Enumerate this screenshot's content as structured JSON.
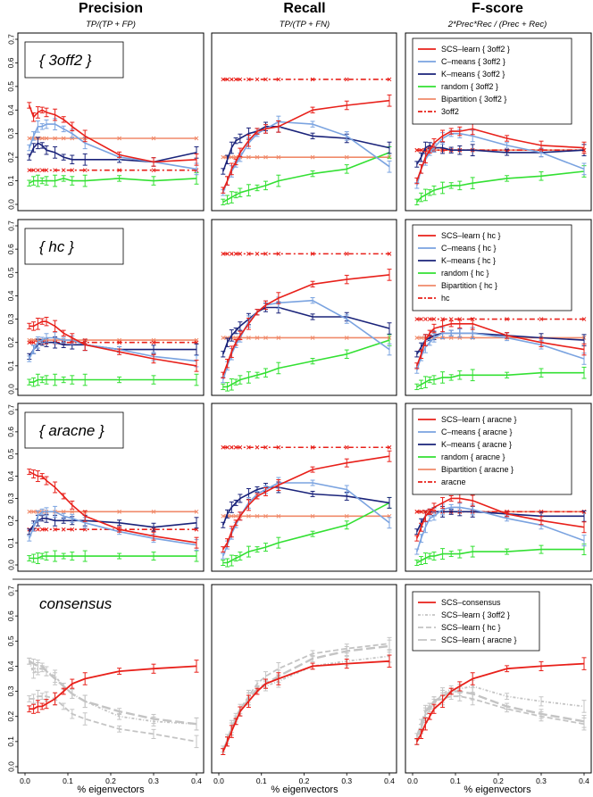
{
  "columns": [
    {
      "title": "Precision",
      "subtitle": "TP/(TP + FP)"
    },
    {
      "title": "Recall",
      "subtitle": "TP/(TP + FN)"
    },
    {
      "title": "F-score",
      "subtitle": "2*Prec*Rec / (Prec + Rec)"
    }
  ],
  "xlabel": "% eigenvectors",
  "colors": {
    "scs": "#e8201a",
    "cmeans": "#7aa3e0",
    "kmeans": "#1a237a",
    "random": "#33e033",
    "bipartition": "#f08a6a",
    "reference": "#e8201a",
    "grey": "#c4c4c4"
  },
  "chart_data": {
    "type": "line",
    "x": [
      0.01,
      0.02,
      0.03,
      0.04,
      0.05,
      0.07,
      0.09,
      0.11,
      0.14,
      0.22,
      0.3,
      0.4
    ],
    "xlim": [
      0,
      0.4
    ],
    "ylim": [
      0,
      0.7
    ],
    "xticks": [
      "0.0",
      "0.1",
      "0.2",
      "0.3",
      "0.4"
    ],
    "yticks": [
      "0.0",
      "0.1",
      "0.2",
      "0.3",
      "0.4",
      "0.5",
      "0.6",
      "0.7"
    ],
    "rows": [
      {
        "label": "{ 3off2 }",
        "legend": [
          "SCS–learn { 3off2 }",
          "C–means { 3off2 }",
          "K–means { 3off2 }",
          "random { 3off2 }",
          "Bipartition { 3off2 }",
          "3off2"
        ],
        "precision": {
          "scs": [
            0.42,
            0.37,
            0.39,
            0.4,
            0.39,
            0.38,
            0.36,
            0.33,
            0.29,
            0.21,
            0.18,
            0.19
          ],
          "cmeans": [
            0.24,
            0.29,
            0.33,
            0.33,
            0.34,
            0.34,
            0.32,
            0.3,
            0.26,
            0.2,
            0.18,
            0.15
          ],
          "kmeans": [
            0.2,
            0.24,
            0.26,
            0.25,
            0.23,
            0.22,
            0.2,
            0.19,
            0.19,
            0.19,
            0.18,
            0.22
          ],
          "random": [
            0.09,
            0.1,
            0.1,
            0.1,
            0.1,
            0.1,
            0.11,
            0.1,
            0.1,
            0.11,
            0.1,
            0.11
          ],
          "bipartition": 0.28,
          "reference": 0.145
        },
        "recall": {
          "scs": [
            0.06,
            0.1,
            0.15,
            0.18,
            0.22,
            0.27,
            0.31,
            0.32,
            0.33,
            0.4,
            0.42,
            0.44
          ],
          "cmeans": [
            0.05,
            0.1,
            0.14,
            0.17,
            0.2,
            0.26,
            0.3,
            0.32,
            0.35,
            0.34,
            0.29,
            0.16
          ],
          "kmeans": [
            0.14,
            0.19,
            0.24,
            0.27,
            0.28,
            0.3,
            0.31,
            0.33,
            0.33,
            0.29,
            0.28,
            0.24
          ],
          "random": [
            0.01,
            0.02,
            0.03,
            0.04,
            0.05,
            0.06,
            0.07,
            0.08,
            0.1,
            0.13,
            0.15,
            0.22
          ],
          "bipartition": 0.2,
          "reference": 0.53
        },
        "fscore": {
          "scs": [
            0.1,
            0.15,
            0.2,
            0.23,
            0.26,
            0.29,
            0.31,
            0.31,
            0.32,
            0.28,
            0.25,
            0.24
          ],
          "cmeans": [
            0.08,
            0.15,
            0.19,
            0.22,
            0.24,
            0.28,
            0.3,
            0.3,
            0.29,
            0.25,
            0.22,
            0.15
          ],
          "kmeans": [
            0.17,
            0.2,
            0.24,
            0.25,
            0.24,
            0.24,
            0.23,
            0.23,
            0.23,
            0.22,
            0.22,
            0.23
          ],
          "random": [
            0.01,
            0.03,
            0.04,
            0.05,
            0.06,
            0.07,
            0.08,
            0.08,
            0.09,
            0.11,
            0.12,
            0.14
          ],
          "bipartition": 0.23,
          "reference": 0.23
        }
      },
      {
        "label": "{ hc }",
        "legend": [
          "SCS–learn { hc }",
          "C–means { hc }",
          "K–means { hc }",
          "random { hc }",
          "Bipartition { hc }",
          "hc"
        ],
        "precision": {
          "scs": [
            0.27,
            0.27,
            0.28,
            0.29,
            0.29,
            0.27,
            0.24,
            0.22,
            0.19,
            0.16,
            0.13,
            0.1
          ],
          "cmeans": [
            0.13,
            0.17,
            0.2,
            0.21,
            0.22,
            0.22,
            0.21,
            0.21,
            0.19,
            0.17,
            0.14,
            0.12
          ],
          "kmeans": [
            0.14,
            0.17,
            0.19,
            0.2,
            0.2,
            0.2,
            0.19,
            0.19,
            0.19,
            0.17,
            0.17,
            0.17
          ],
          "random": [
            0.03,
            0.03,
            0.04,
            0.04,
            0.04,
            0.04,
            0.04,
            0.04,
            0.04,
            0.04,
            0.04,
            0.04
          ],
          "bipartition": 0.21,
          "reference": 0.2
        },
        "recall": {
          "scs": [
            0.06,
            0.11,
            0.16,
            0.2,
            0.23,
            0.28,
            0.33,
            0.36,
            0.39,
            0.45,
            0.47,
            0.49
          ],
          "cmeans": [
            0.04,
            0.1,
            0.15,
            0.19,
            0.22,
            0.29,
            0.33,
            0.36,
            0.37,
            0.38,
            0.3,
            0.17
          ],
          "kmeans": [
            0.15,
            0.2,
            0.23,
            0.25,
            0.27,
            0.3,
            0.33,
            0.35,
            0.35,
            0.31,
            0.31,
            0.26
          ],
          "random": [
            0.01,
            0.01,
            0.02,
            0.03,
            0.04,
            0.05,
            0.06,
            0.07,
            0.09,
            0.12,
            0.15,
            0.21
          ],
          "bipartition": 0.22,
          "reference": 0.58
        },
        "fscore": {
          "scs": [
            0.1,
            0.15,
            0.21,
            0.24,
            0.26,
            0.27,
            0.28,
            0.28,
            0.28,
            0.23,
            0.2,
            0.17
          ],
          "cmeans": [
            0.08,
            0.14,
            0.18,
            0.2,
            0.22,
            0.24,
            0.24,
            0.24,
            0.24,
            0.22,
            0.19,
            0.13
          ],
          "kmeans": [
            0.15,
            0.18,
            0.21,
            0.22,
            0.23,
            0.24,
            0.24,
            0.24,
            0.24,
            0.23,
            0.22,
            0.21
          ],
          "random": [
            0.01,
            0.02,
            0.03,
            0.04,
            0.04,
            0.05,
            0.05,
            0.06,
            0.06,
            0.06,
            0.07,
            0.07
          ],
          "bipartition": 0.22,
          "reference": 0.3
        }
      },
      {
        "label": "{ aracne }",
        "legend": [
          "SCS–learn { aracne }",
          "C–means { aracne }",
          "K–means { aracne }",
          "random { aracne }",
          "Bipartition { aracne }",
          "aracne"
        ],
        "precision": {
          "scs": [
            0.42,
            0.41,
            0.4,
            0.4,
            0.38,
            0.35,
            0.31,
            0.27,
            0.22,
            0.16,
            0.13,
            0.1
          ],
          "cmeans": [
            0.12,
            0.17,
            0.22,
            0.24,
            0.24,
            0.24,
            0.22,
            0.21,
            0.19,
            0.15,
            0.12,
            0.09
          ],
          "kmeans": [
            0.15,
            0.18,
            0.2,
            0.21,
            0.21,
            0.2,
            0.2,
            0.2,
            0.2,
            0.19,
            0.17,
            0.19
          ],
          "random": [
            0.03,
            0.03,
            0.03,
            0.04,
            0.04,
            0.04,
            0.04,
            0.04,
            0.04,
            0.04,
            0.04,
            0.04
          ],
          "bipartition": 0.24,
          "reference": 0.16
        },
        "recall": {
          "scs": [
            0.07,
            0.1,
            0.15,
            0.19,
            0.22,
            0.27,
            0.31,
            0.33,
            0.36,
            0.43,
            0.46,
            0.49
          ],
          "cmeans": [
            0.04,
            0.09,
            0.14,
            0.18,
            0.22,
            0.28,
            0.32,
            0.34,
            0.37,
            0.37,
            0.34,
            0.19
          ],
          "kmeans": [
            0.18,
            0.23,
            0.26,
            0.28,
            0.3,
            0.32,
            0.34,
            0.35,
            0.35,
            0.32,
            0.31,
            0.28
          ],
          "random": [
            0.01,
            0.01,
            0.02,
            0.03,
            0.04,
            0.06,
            0.07,
            0.08,
            0.1,
            0.14,
            0.18,
            0.28
          ],
          "bipartition": 0.22,
          "reference": 0.53
        },
        "fscore": {
          "scs": [
            0.12,
            0.17,
            0.22,
            0.24,
            0.26,
            0.28,
            0.3,
            0.3,
            0.29,
            0.23,
            0.2,
            0.17
          ],
          "cmeans": [
            0.06,
            0.12,
            0.17,
            0.21,
            0.22,
            0.25,
            0.26,
            0.26,
            0.25,
            0.21,
            0.18,
            0.11
          ],
          "kmeans": [
            0.15,
            0.19,
            0.22,
            0.24,
            0.24,
            0.24,
            0.24,
            0.24,
            0.24,
            0.23,
            0.22,
            0.22
          ],
          "random": [
            0.01,
            0.02,
            0.03,
            0.04,
            0.04,
            0.05,
            0.05,
            0.05,
            0.06,
            0.06,
            0.07,
            0.07
          ],
          "bipartition": 0.24,
          "reference": 0.24
        }
      }
    ],
    "consensus": {
      "label": "consensus",
      "legend": [
        "SCS–consensus",
        "SCS–learn { 3off2 }",
        "SCS–learn { hc }",
        "SCS–learn { aracne }"
      ],
      "precision": {
        "consensus": [
          0.23,
          0.23,
          0.24,
          0.24,
          0.25,
          0.27,
          0.3,
          0.33,
          0.35,
          0.38,
          0.39,
          0.4
        ],
        "learn_3off2": [
          0.42,
          0.37,
          0.39,
          0.39,
          0.38,
          0.36,
          0.32,
          0.29,
          0.26,
          0.2,
          0.18,
          0.17
        ],
        "learn_hc": [
          0.27,
          0.27,
          0.28,
          0.28,
          0.28,
          0.27,
          0.24,
          0.21,
          0.19,
          0.15,
          0.13,
          0.1
        ],
        "learn_aracne": [
          0.42,
          0.41,
          0.4,
          0.4,
          0.38,
          0.35,
          0.32,
          0.29,
          0.26,
          0.22,
          0.19,
          0.17
        ]
      },
      "recall": {
        "consensus": [
          0.06,
          0.1,
          0.14,
          0.18,
          0.22,
          0.26,
          0.3,
          0.33,
          0.35,
          0.4,
          0.41,
          0.42
        ],
        "learn_3off2": [
          0.06,
          0.1,
          0.15,
          0.18,
          0.22,
          0.27,
          0.31,
          0.32,
          0.34,
          0.4,
          0.42,
          0.44
        ],
        "learn_hc": [
          0.06,
          0.11,
          0.16,
          0.2,
          0.23,
          0.28,
          0.33,
          0.36,
          0.39,
          0.45,
          0.47,
          0.49
        ],
        "learn_aracne": [
          0.07,
          0.1,
          0.15,
          0.19,
          0.22,
          0.27,
          0.31,
          0.33,
          0.36,
          0.43,
          0.46,
          0.48
        ]
      },
      "fscore": {
        "consensus": [
          0.1,
          0.13,
          0.17,
          0.2,
          0.23,
          0.26,
          0.3,
          0.32,
          0.35,
          0.39,
          0.4,
          0.41
        ],
        "learn_3off2": [
          0.1,
          0.15,
          0.2,
          0.23,
          0.25,
          0.29,
          0.31,
          0.31,
          0.32,
          0.28,
          0.26,
          0.24
        ],
        "learn_hc": [
          0.1,
          0.15,
          0.21,
          0.24,
          0.26,
          0.27,
          0.28,
          0.28,
          0.27,
          0.23,
          0.2,
          0.17
        ],
        "learn_aracne": [
          0.12,
          0.17,
          0.22,
          0.24,
          0.26,
          0.28,
          0.3,
          0.3,
          0.29,
          0.24,
          0.21,
          0.18
        ]
      }
    }
  }
}
